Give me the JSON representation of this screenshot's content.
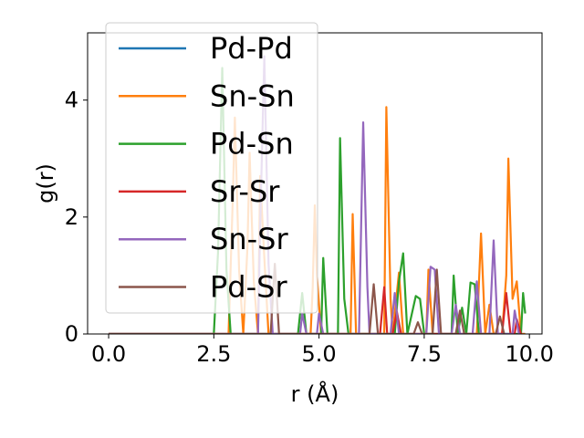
{
  "chart_data": {
    "type": "line",
    "xlabel": "r (Å)",
    "ylabel": "g(r)",
    "xlim": [
      -0.5,
      10.3
    ],
    "ylim": [
      0,
      5.15
    ],
    "xticks": [
      0.0,
      2.5,
      5.0,
      7.5,
      10.0
    ],
    "xtick_labels": [
      "0.0",
      "2.5",
      "5.0",
      "7.5",
      "10.0"
    ],
    "yticks": [
      0,
      2,
      4
    ],
    "ytick_labels": [
      "0",
      "2",
      "4"
    ],
    "grid": false,
    "legend_position": "upper-left",
    "series": [
      {
        "name": "Pd-Pd",
        "color": "#1f77b4",
        "points": [
          [
            0,
            0
          ],
          [
            9.9,
            0
          ]
        ]
      },
      {
        "name": "Sn-Sn",
        "color": "#ff7f0e",
        "points": [
          [
            0,
            0
          ],
          [
            2.85,
            0
          ],
          [
            2.95,
            2.3
          ],
          [
            3.0,
            3.7
          ],
          [
            3.1,
            1.1
          ],
          [
            3.2,
            0
          ],
          [
            3.3,
            1.5
          ],
          [
            3.35,
            3.1
          ],
          [
            3.45,
            0.9
          ],
          [
            3.55,
            0
          ],
          [
            3.6,
            2.7
          ],
          [
            3.7,
            1.3
          ],
          [
            3.8,
            0
          ],
          [
            4.8,
            0
          ],
          [
            4.85,
            0.8
          ],
          [
            4.9,
            2.2
          ],
          [
            4.95,
            1.0
          ],
          [
            5.05,
            0
          ],
          [
            5.75,
            0
          ],
          [
            5.8,
            2.05
          ],
          [
            5.88,
            0
          ],
          [
            6.55,
            0
          ],
          [
            6.6,
            3.88
          ],
          [
            6.7,
            0.6
          ],
          [
            6.75,
            0
          ],
          [
            6.9,
            1.05
          ],
          [
            7.0,
            0
          ],
          [
            7.55,
            0
          ],
          [
            7.6,
            1.1
          ],
          [
            7.7,
            0
          ],
          [
            8.75,
            0
          ],
          [
            8.85,
            1.72
          ],
          [
            8.95,
            0
          ],
          [
            9.05,
            0.5
          ],
          [
            9.15,
            0
          ],
          [
            9.35,
            0
          ],
          [
            9.45,
            1.0
          ],
          [
            9.5,
            3.0
          ],
          [
            9.6,
            0.6
          ],
          [
            9.7,
            0.9
          ],
          [
            9.8,
            0
          ],
          [
            9.9,
            0
          ]
        ]
      },
      {
        "name": "Pd-Sn",
        "color": "#2ca02c",
        "points": [
          [
            0,
            0
          ],
          [
            2.5,
            0
          ],
          [
            2.6,
            1.4
          ],
          [
            2.7,
            4.55
          ],
          [
            2.8,
            1.1
          ],
          [
            2.9,
            0
          ],
          [
            4.5,
            0
          ],
          [
            4.6,
            0.7
          ],
          [
            4.7,
            0
          ],
          [
            5.05,
            0
          ],
          [
            5.1,
            1.3
          ],
          [
            5.2,
            0
          ],
          [
            5.45,
            0
          ],
          [
            5.5,
            3.35
          ],
          [
            5.6,
            0.6
          ],
          [
            5.7,
            0
          ],
          [
            6.8,
            0
          ],
          [
            6.9,
            0.9
          ],
          [
            7.0,
            1.38
          ],
          [
            7.1,
            0
          ],
          [
            7.3,
            0.65
          ],
          [
            7.4,
            0.6
          ],
          [
            7.5,
            0
          ],
          [
            8.15,
            0
          ],
          [
            8.2,
            1.0
          ],
          [
            8.3,
            0
          ],
          [
            8.4,
            0.45
          ],
          [
            8.5,
            0
          ],
          [
            8.6,
            0.88
          ],
          [
            8.7,
            0.85
          ],
          [
            8.8,
            0
          ],
          [
            9.8,
            0
          ],
          [
            9.85,
            0.7
          ],
          [
            9.9,
            0.35
          ]
        ]
      },
      {
        "name": "Sr-Sr",
        "color": "#d62728",
        "points": [
          [
            0,
            0
          ],
          [
            6.45,
            0
          ],
          [
            6.55,
            0.8
          ],
          [
            6.62,
            0
          ],
          [
            6.75,
            0
          ],
          [
            6.85,
            0.38
          ],
          [
            6.95,
            0
          ],
          [
            9.35,
            0
          ],
          [
            9.45,
            0.7
          ],
          [
            9.55,
            0
          ],
          [
            9.65,
            0
          ],
          [
            9.7,
            0.25
          ],
          [
            9.8,
            0
          ]
        ]
      },
      {
        "name": "Sn-Sr",
        "color": "#9467bd",
        "points": [
          [
            0,
            0
          ],
          [
            3.55,
            0
          ],
          [
            3.6,
            1.8
          ],
          [
            3.7,
            4.75
          ],
          [
            3.8,
            1.2
          ],
          [
            3.9,
            0
          ],
          [
            4.55,
            0
          ],
          [
            4.6,
            0.35
          ],
          [
            4.7,
            0
          ],
          [
            4.95,
            0
          ],
          [
            5.0,
            0.35
          ],
          [
            5.1,
            0
          ],
          [
            5.95,
            0
          ],
          [
            6.05,
            3.62
          ],
          [
            6.15,
            0.8
          ],
          [
            6.2,
            0
          ],
          [
            6.7,
            0
          ],
          [
            6.8,
            0.7
          ],
          [
            6.9,
            0
          ],
          [
            7.55,
            0
          ],
          [
            7.65,
            1.15
          ],
          [
            7.75,
            1.1
          ],
          [
            7.85,
            0
          ],
          [
            8.15,
            0
          ],
          [
            8.25,
            0.5
          ],
          [
            8.35,
            0
          ],
          [
            8.65,
            0
          ],
          [
            8.75,
            0.9
          ],
          [
            8.85,
            0
          ],
          [
            9.05,
            0
          ],
          [
            9.15,
            1.6
          ],
          [
            9.25,
            0
          ],
          [
            9.6,
            0
          ],
          [
            9.65,
            0.4
          ],
          [
            9.75,
            0
          ]
        ]
      },
      {
        "name": "Pd-Sr",
        "color": "#8c564b",
        "points": [
          [
            0,
            0
          ],
          [
            3.85,
            0
          ],
          [
            3.95,
            1.2
          ],
          [
            4.05,
            0
          ],
          [
            6.2,
            0
          ],
          [
            6.3,
            0.85
          ],
          [
            6.4,
            0
          ],
          [
            7.25,
            0
          ],
          [
            7.35,
            0.2
          ],
          [
            7.45,
            0
          ],
          [
            7.7,
            0
          ],
          [
            7.8,
            1.1
          ],
          [
            7.9,
            0
          ],
          [
            8.25,
            0
          ],
          [
            8.35,
            0.4
          ],
          [
            8.45,
            0
          ],
          [
            9.2,
            0
          ],
          [
            9.3,
            0.3
          ],
          [
            9.4,
            0
          ]
        ]
      }
    ]
  }
}
